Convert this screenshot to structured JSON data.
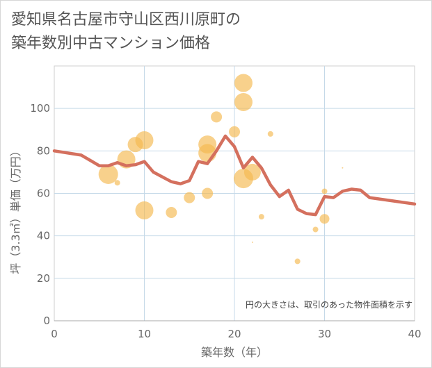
{
  "title": "愛知県名古屋市守山区西川原町の\n築年数別中古マンション価格",
  "chart_data": {
    "type": "scatter",
    "xlabel": "築年数（年）",
    "ylabel": "坪（3.3㎡）単価（万円）",
    "xlim": [
      0,
      40
    ],
    "ylim": [
      0,
      120
    ],
    "xticks": [
      0,
      10,
      20,
      30,
      40
    ],
    "yticks": [
      0,
      20,
      40,
      60,
      80,
      100
    ],
    "grid": true,
    "annotation": "円の大きさは、取引のあった物件面積を示す",
    "colors": {
      "bubble": "#f5b94e",
      "line": "#d4705e"
    },
    "bubbles": [
      {
        "x": 6,
        "y": 69,
        "size": 14
      },
      {
        "x": 7,
        "y": 65,
        "size": 4
      },
      {
        "x": 8,
        "y": 76,
        "size": 13
      },
      {
        "x": 9,
        "y": 83,
        "size": 11
      },
      {
        "x": 10,
        "y": 85,
        "size": 13
      },
      {
        "x": 10,
        "y": 52,
        "size": 13
      },
      {
        "x": 13,
        "y": 51,
        "size": 8
      },
      {
        "x": 15,
        "y": 58,
        "size": 8
      },
      {
        "x": 17,
        "y": 83,
        "size": 13
      },
      {
        "x": 17,
        "y": 79,
        "size": 13
      },
      {
        "x": 17,
        "y": 60,
        "size": 8
      },
      {
        "x": 18,
        "y": 96,
        "size": 8
      },
      {
        "x": 20,
        "y": 89,
        "size": 8
      },
      {
        "x": 21,
        "y": 112,
        "size": 13
      },
      {
        "x": 21,
        "y": 103,
        "size": 13
      },
      {
        "x": 21,
        "y": 67,
        "size": 14
      },
      {
        "x": 22,
        "y": 70,
        "size": 12
      },
      {
        "x": 22,
        "y": 37,
        "size": 1
      },
      {
        "x": 23,
        "y": 49,
        "size": 4
      },
      {
        "x": 24,
        "y": 88,
        "size": 4
      },
      {
        "x": 27,
        "y": 28,
        "size": 4
      },
      {
        "x": 29,
        "y": 43,
        "size": 4
      },
      {
        "x": 30,
        "y": 61,
        "size": 4
      },
      {
        "x": 30,
        "y": 48,
        "size": 7
      },
      {
        "x": 32,
        "y": 72,
        "size": 1
      }
    ],
    "line": {
      "x": [
        0,
        3,
        5,
        6,
        7,
        8,
        9,
        10,
        11,
        13,
        14,
        15,
        16,
        17,
        18,
        19,
        20,
        21,
        22,
        23,
        24,
        25,
        26,
        27,
        28,
        29,
        30,
        31,
        32,
        33,
        34,
        35,
        40
      ],
      "y": [
        80,
        78,
        73,
        73,
        74.5,
        73,
        73.5,
        75,
        70,
        65.5,
        64.5,
        66,
        75,
        74,
        80,
        87,
        82,
        72,
        77,
        72,
        64,
        58.5,
        61.5,
        52.5,
        50.5,
        50,
        58.5,
        58,
        61,
        62,
        61.5,
        58,
        55
      ]
    }
  }
}
